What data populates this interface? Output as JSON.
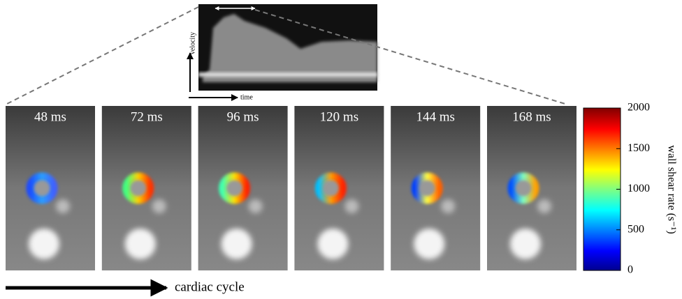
{
  "figure": {
    "panels": [
      {
        "label": "48 ms"
      },
      {
        "label": "72 ms"
      },
      {
        "label": "96 ms"
      },
      {
        "label": "120 ms"
      },
      {
        "label": "144 ms"
      },
      {
        "label": "168 ms"
      }
    ],
    "inset": {
      "y_label": "velocity",
      "x_label": "time"
    },
    "colorbar": {
      "label": "wall shear rate (s⁻¹)",
      "lim": [
        0,
        2000
      ],
      "ticks": [
        0,
        500,
        1000,
        1500,
        2000
      ]
    },
    "timeline_label": "cardiac cycle"
  }
}
